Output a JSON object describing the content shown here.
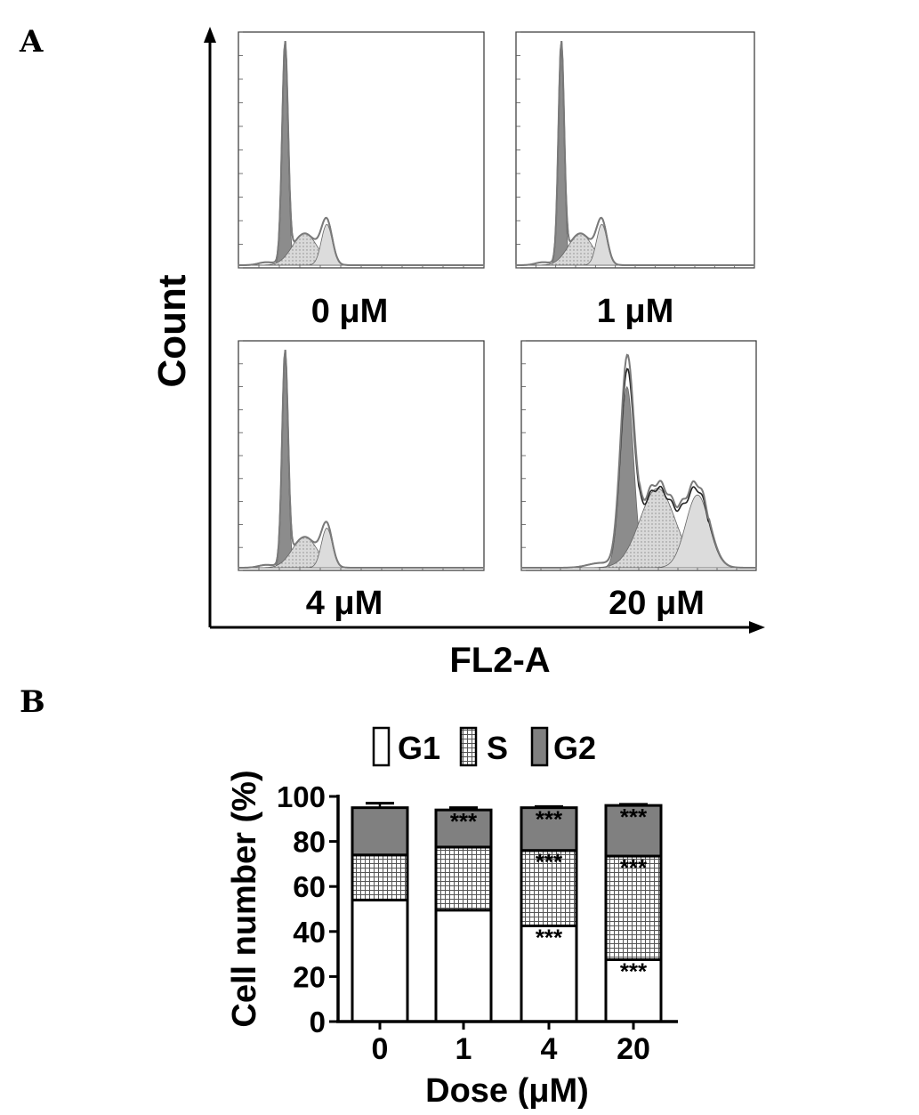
{
  "panel_a": {
    "letter": "A",
    "y_axis_label": "Count",
    "x_axis_label": "FL2-A",
    "subplots": [
      {
        "label": "0 μM",
        "profile": "control"
      },
      {
        "label": "1 μM",
        "profile": "control"
      },
      {
        "label": "4 μM",
        "profile": "control"
      },
      {
        "label": "20 μM",
        "profile": "arrested"
      }
    ]
  },
  "panel_b": {
    "letter": "B",
    "legend": [
      {
        "name": "G1",
        "pattern": "white"
      },
      {
        "name": "S",
        "pattern": "crosshatch"
      },
      {
        "name": "G2",
        "pattern": "dark-gray"
      }
    ]
  },
  "chart_data": [
    {
      "type": "histogram",
      "panel": "A",
      "panels": [
        "0 μM",
        "1 μM",
        "4 μM",
        "20 μM"
      ],
      "xlabel": "FL2-A",
      "ylabel": "Count",
      "fit_components": [
        "G1",
        "S",
        "G2"
      ]
    },
    {
      "type": "bar",
      "stacked": true,
      "panel": "B",
      "categories": [
        "0",
        "1",
        "4",
        "20"
      ],
      "xlabel": "Dose (μM)",
      "ylabel": "Cell number (%)",
      "ylim": [
        0,
        100
      ],
      "yticks": [
        0,
        20,
        40,
        60,
        80,
        100
      ],
      "legend_position": "top",
      "series": [
        {
          "name": "G1",
          "values": [
            54,
            49.5,
            42.5,
            27.5
          ],
          "errors": [
            1.5,
            2.5,
            2.5,
            1.5
          ],
          "significance": [
            "",
            "",
            "***",
            "***"
          ]
        },
        {
          "name": "S",
          "values": [
            20,
            28,
            33.5,
            46
          ],
          "errors": [
            2,
            2.5,
            3,
            1.5
          ],
          "significance": [
            "",
            "",
            "***",
            "***"
          ]
        },
        {
          "name": "G2",
          "values": [
            21,
            16.5,
            19,
            22.5
          ],
          "errors": [
            2,
            1,
            0.5,
            0.5
          ],
          "significance": [
            "",
            "***",
            "***",
            "***"
          ]
        }
      ],
      "colors": {
        "G1": "#ffffff",
        "S": "#d8d8d8",
        "G2": "#808080"
      }
    }
  ]
}
